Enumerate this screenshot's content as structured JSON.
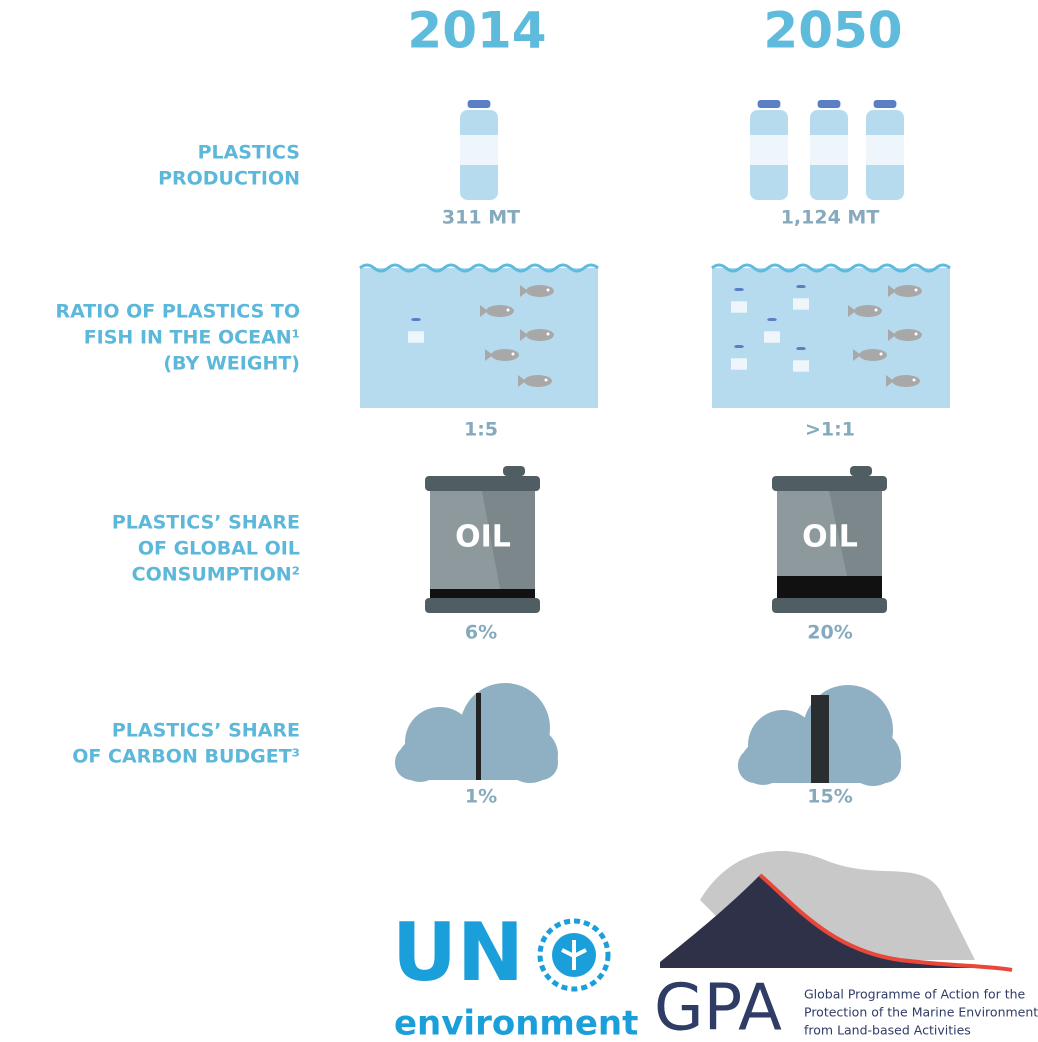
{
  "columns": [
    "2014",
    "2050"
  ],
  "rows": [
    {
      "label": [
        "PLASTICS",
        "PRODUCTION"
      ],
      "values": [
        "311 MT",
        "1,124 MT"
      ]
    },
    {
      "label": [
        "RATIO OF PLASTICS TO",
        "FISH IN THE OCEAN¹",
        "(BY WEIGHT)"
      ],
      "values": [
        "1:5",
        ">1:1"
      ]
    },
    {
      "label": [
        "PLASTICS’ SHARE",
        "OF GLOBAL OIL",
        "CONSUMPTION²"
      ],
      "values": [
        "6%",
        "20%"
      ],
      "icon_text": "OIL"
    },
    {
      "label": [
        "PLASTICS’ SHARE",
        "OF CARBON BUDGET³"
      ],
      "values": [
        "1%",
        "15%"
      ]
    }
  ],
  "logos": {
    "un": {
      "name": "UN",
      "sub": "environment"
    },
    "gpa": {
      "name": "GPA",
      "lines": [
        "Global Programme of Action for the",
        "Protection of the Marine Environment",
        "from Land-based Activities"
      ]
    }
  }
}
